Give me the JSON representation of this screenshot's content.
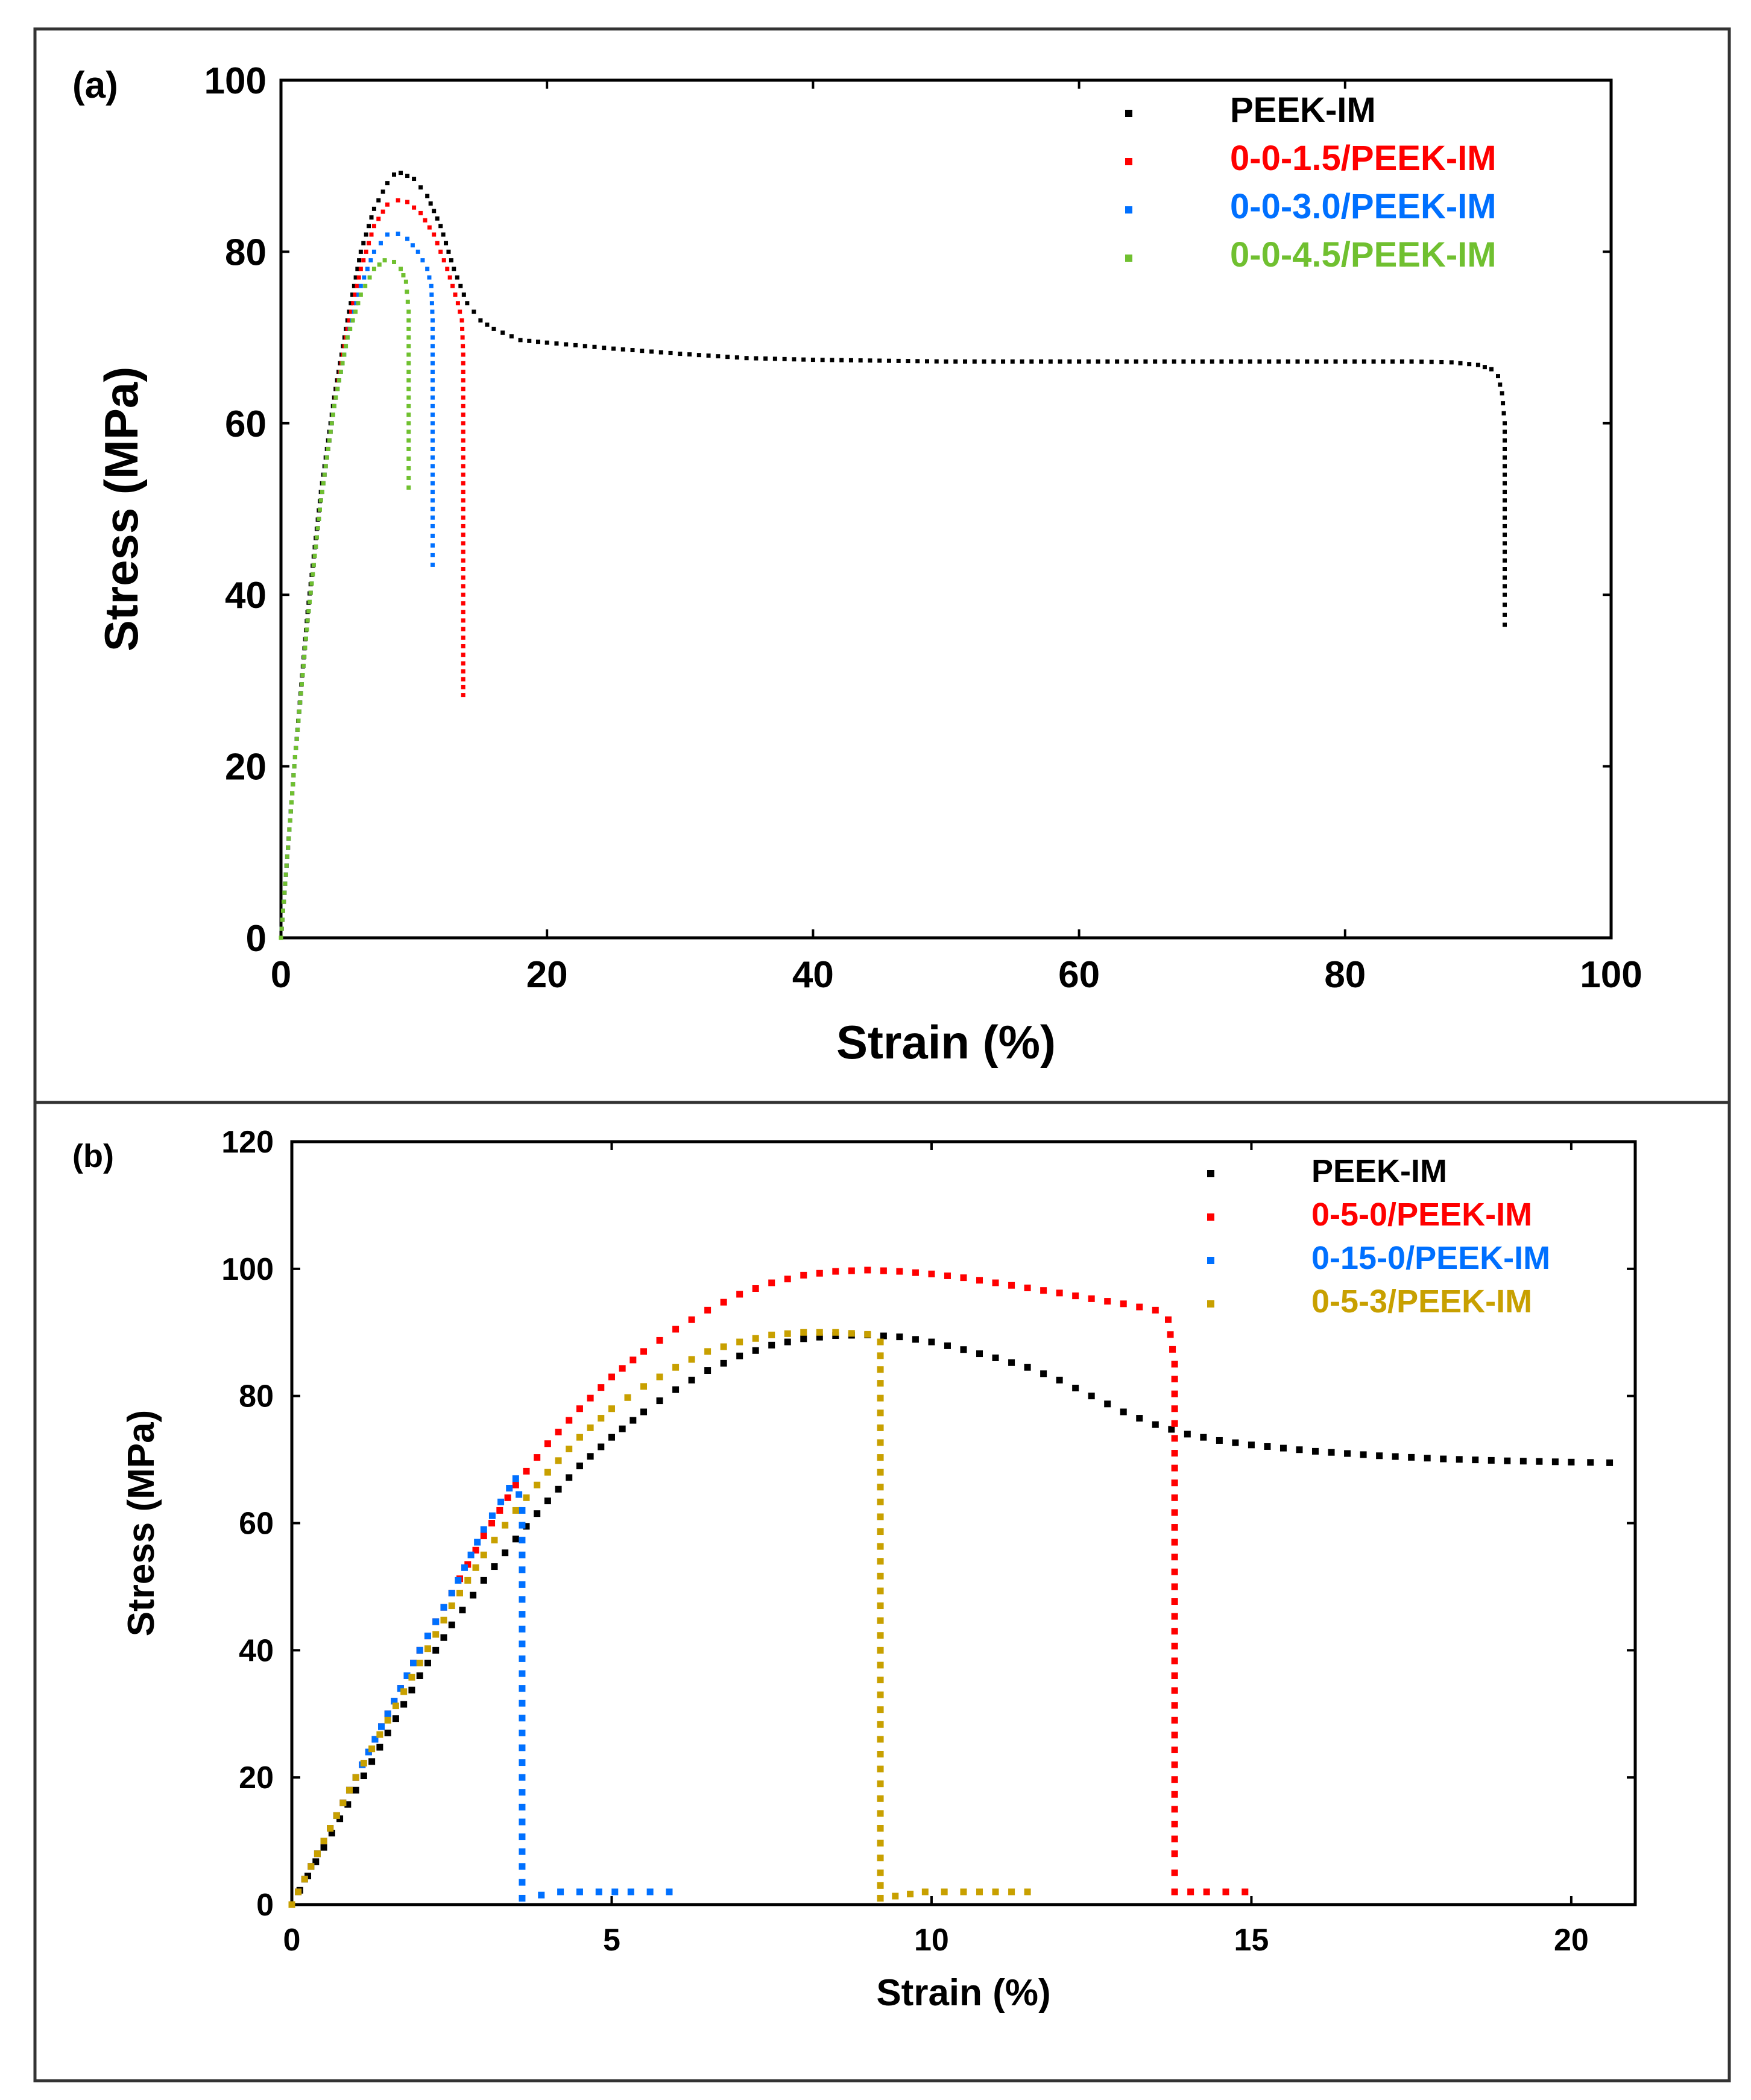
{
  "chart_data": [
    {
      "panel_label": "(a)",
      "type": "scatter",
      "title": "",
      "xlabel": "Strain (%)",
      "ylabel": "Stress (MPa)",
      "xlim": [
        0,
        100
      ],
      "ylim": [
        0,
        100
      ],
      "xticks": [
        0,
        20,
        40,
        60,
        80,
        100
      ],
      "yticks": [
        0,
        20,
        40,
        60,
        80,
        100
      ],
      "grid": false,
      "legend_position": "top-right",
      "series": [
        {
          "name": "PEEK-IM",
          "color": "#000000",
          "points": [
            [
              0,
              0
            ],
            [
              1,
              20
            ],
            [
              2,
              38
            ],
            [
              3,
              52
            ],
            [
              4,
              63
            ],
            [
              5,
              72
            ],
            [
              6,
              80
            ],
            [
              7,
              85
            ],
            [
              8,
              88
            ],
            [
              8.5,
              89
            ],
            [
              9,
              89.2
            ],
            [
              10,
              88.5
            ],
            [
              11,
              86.5
            ],
            [
              12,
              83
            ],
            [
              13,
              78
            ],
            [
              14,
              74
            ],
            [
              15,
              72
            ],
            [
              16,
              71
            ],
            [
              18,
              69.7
            ],
            [
              20,
              69.4
            ],
            [
              25,
              68.7
            ],
            [
              30,
              68.1
            ],
            [
              35,
              67.6
            ],
            [
              40,
              67.4
            ],
            [
              45,
              67.3
            ],
            [
              50,
              67.2
            ],
            [
              55,
              67.2
            ],
            [
              60,
              67.2
            ],
            [
              65,
              67.2
            ],
            [
              70,
              67.2
            ],
            [
              75,
              67.2
            ],
            [
              80,
              67.2
            ],
            [
              85,
              67.2
            ],
            [
              88,
              67.1
            ],
            [
              90,
              66.8
            ],
            [
              91,
              66.3
            ],
            [
              91.5,
              65.5
            ],
            [
              91.8,
              63.5
            ],
            [
              92,
              60
            ],
            [
              92,
              55
            ],
            [
              92,
              50
            ],
            [
              92,
              45
            ],
            [
              92,
              40
            ],
            [
              92,
              36.5
            ]
          ]
        },
        {
          "name": "0-0-1.5/PEEK-IM",
          "color": "#ff0000",
          "points": [
            [
              0,
              0
            ],
            [
              1,
              20
            ],
            [
              2,
              37
            ],
            [
              3,
              51
            ],
            [
              4,
              62
            ],
            [
              5,
              71
            ],
            [
              6,
              78
            ],
            [
              7,
              83
            ],
            [
              8,
              85.5
            ],
            [
              8.8,
              86
            ],
            [
              9.5,
              85.8
            ],
            [
              10.5,
              84.5
            ],
            [
              11.5,
              82
            ],
            [
              12.5,
              78
            ],
            [
              13.3,
              74
            ],
            [
              13.6,
              72
            ],
            [
              13.7,
              68
            ],
            [
              13.7,
              64
            ],
            [
              13.7,
              60
            ],
            [
              13.7,
              56
            ],
            [
              13.7,
              52
            ],
            [
              13.7,
              48
            ],
            [
              13.7,
              44
            ],
            [
              13.7,
              40
            ],
            [
              13.7,
              36
            ],
            [
              13.7,
              32
            ],
            [
              13.7,
              28.3
            ]
          ]
        },
        {
          "name": "0-0-3.0/PEEK-IM",
          "color": "#0070ff",
          "points": [
            [
              0,
              0
            ],
            [
              1,
              20
            ],
            [
              2,
              37
            ],
            [
              3,
              51
            ],
            [
              4,
              62
            ],
            [
              5,
              70
            ],
            [
              6,
              76
            ],
            [
              7,
              80
            ],
            [
              8,
              82
            ],
            [
              8.8,
              82.1
            ],
            [
              9.5,
              81.5
            ],
            [
              10.3,
              80
            ],
            [
              11,
              78
            ],
            [
              11.3,
              76
            ],
            [
              11.4,
              72
            ],
            [
              11.4,
              68
            ],
            [
              11.4,
              64
            ],
            [
              11.4,
              60
            ],
            [
              11.4,
              56
            ],
            [
              11.4,
              52
            ],
            [
              11.4,
              48
            ],
            [
              11.4,
              43.5
            ]
          ]
        },
        {
          "name": "0-0-4.5/PEEK-IM",
          "color": "#70c030",
          "points": [
            [
              0,
              0
            ],
            [
              1,
              20
            ],
            [
              2,
              37
            ],
            [
              3,
              51
            ],
            [
              4,
              62
            ],
            [
              5,
              70
            ],
            [
              6,
              75
            ],
            [
              7,
              78
            ],
            [
              7.8,
              79
            ],
            [
              8.5,
              78.8
            ],
            [
              9,
              78
            ],
            [
              9.4,
              76.5
            ],
            [
              9.6,
              73
            ],
            [
              9.6,
              69
            ],
            [
              9.6,
              65
            ],
            [
              9.6,
              61
            ],
            [
              9.6,
              57
            ],
            [
              9.6,
              52.5
            ]
          ]
        }
      ]
    },
    {
      "panel_label": "(b)",
      "type": "scatter",
      "title": "",
      "xlabel": "Strain (%)",
      "ylabel": "Stress (MPa)",
      "xlim": [
        0,
        21
      ],
      "ylim": [
        0,
        120
      ],
      "xticks": [
        0,
        5,
        10,
        15,
        20
      ],
      "yticks": [
        0,
        20,
        40,
        60,
        80,
        100,
        120
      ],
      "grid": false,
      "legend_position": "top-right",
      "series": [
        {
          "name": "PEEK-IM",
          "color": "#000000",
          "points": [
            [
              0,
              0
            ],
            [
              0.5,
              9
            ],
            [
              1,
              18
            ],
            [
              1.5,
              27
            ],
            [
              2,
              36
            ],
            [
              2.5,
              44
            ],
            [
              3,
              51
            ],
            [
              3.5,
              57.5
            ],
            [
              4,
              63.5
            ],
            [
              4.5,
              69
            ],
            [
              5,
              73.5
            ],
            [
              5.5,
              77.5
            ],
            [
              6,
              81
            ],
            [
              6.5,
              84
            ],
            [
              7,
              86.3
            ],
            [
              7.5,
              88
            ],
            [
              8,
              89
            ],
            [
              8.5,
              89.5
            ],
            [
              9,
              89.6
            ],
            [
              9.5,
              89.3
            ],
            [
              10,
              88.5
            ],
            [
              10.5,
              87.3
            ],
            [
              11,
              86
            ],
            [
              11.5,
              84.5
            ],
            [
              12,
              82.5
            ],
            [
              12.5,
              80
            ],
            [
              13,
              77.5
            ],
            [
              13.5,
              75.5
            ],
            [
              14,
              74
            ],
            [
              14.5,
              73
            ],
            [
              15,
              72.3
            ],
            [
              16,
              71.3
            ],
            [
              17,
              70.6
            ],
            [
              18,
              70.1
            ],
            [
              19,
              69.8
            ],
            [
              20,
              69.6
            ],
            [
              20.6,
              69.5
            ]
          ]
        },
        {
          "name": "0-5-0/PEEK-IM",
          "color": "#ff0000",
          "points": [
            [
              0,
              0
            ],
            [
              0.5,
              10
            ],
            [
              1,
              20
            ],
            [
              1.5,
              30
            ],
            [
              2,
              40
            ],
            [
              2.5,
              49
            ],
            [
              3,
              58
            ],
            [
              3.5,
              66
            ],
            [
              4,
              72.5
            ],
            [
              4.5,
              78
            ],
            [
              5,
              83
            ],
            [
              5.5,
              87
            ],
            [
              6,
              90.5
            ],
            [
              6.5,
              93.5
            ],
            [
              7,
              96
            ],
            [
              7.5,
              97.8
            ],
            [
              8,
              99
            ],
            [
              8.5,
              99.6
            ],
            [
              9,
              99.8
            ],
            [
              9.5,
              99.6
            ],
            [
              10,
              99.2
            ],
            [
              10.5,
              98.6
            ],
            [
              11,
              97.8
            ],
            [
              11.5,
              97
            ],
            [
              12,
              96.2
            ],
            [
              12.5,
              95.3
            ],
            [
              13,
              94.5
            ],
            [
              13.5,
              93.5
            ],
            [
              13.7,
              92
            ],
            [
              13.8,
              85
            ],
            [
              13.8,
              78
            ],
            [
              13.8,
              71
            ],
            [
              13.8,
              64
            ],
            [
              13.8,
              57
            ],
            [
              13.8,
              50
            ],
            [
              13.8,
              43
            ],
            [
              13.8,
              36
            ],
            [
              13.8,
              29
            ],
            [
              13.8,
              22
            ],
            [
              13.8,
              15
            ],
            [
              13.8,
              8
            ],
            [
              13.8,
              2
            ],
            [
              14.3,
              2
            ],
            [
              14.9,
              2
            ]
          ]
        },
        {
          "name": "0-15-0/PEEK-IM",
          "color": "#0070ff",
          "points": [
            [
              0,
              0
            ],
            [
              0.5,
              10
            ],
            [
              1,
              20
            ],
            [
              1.5,
              30
            ],
            [
              2,
              40
            ],
            [
              2.5,
              49
            ],
            [
              3,
              59
            ],
            [
              3.4,
              65.5
            ],
            [
              3.5,
              67
            ],
            [
              3.6,
              62
            ],
            [
              3.6,
              55
            ],
            [
              3.6,
              48
            ],
            [
              3.6,
              41
            ],
            [
              3.6,
              34
            ],
            [
              3.6,
              27
            ],
            [
              3.6,
              20
            ],
            [
              3.6,
              13
            ],
            [
              3.6,
              6
            ],
            [
              3.6,
              1
            ],
            [
              4.2,
              2
            ],
            [
              4.8,
              2
            ],
            [
              5.3,
              2
            ],
            [
              5.9,
              2
            ]
          ]
        },
        {
          "name": "0-5-3/PEEK-IM",
          "color": "#c8a000",
          "points": [
            [
              0,
              0
            ],
            [
              0.5,
              10
            ],
            [
              1,
              20
            ],
            [
              1.5,
              29
            ],
            [
              2,
              38
            ],
            [
              2.5,
              47
            ],
            [
              3,
              55
            ],
            [
              3.5,
              62
            ],
            [
              4,
              68
            ],
            [
              4.5,
              73.5
            ],
            [
              5,
              78
            ],
            [
              5.5,
              81.5
            ],
            [
              6,
              84.5
            ],
            [
              6.5,
              87
            ],
            [
              7,
              88.5
            ],
            [
              7.5,
              89.6
            ],
            [
              8,
              90
            ],
            [
              8.5,
              90
            ],
            [
              9,
              89.7
            ],
            [
              9.2,
              88.5
            ],
            [
              9.2,
              82
            ],
            [
              9.2,
              75
            ],
            [
              9.2,
              68
            ],
            [
              9.2,
              61
            ],
            [
              9.2,
              54
            ],
            [
              9.2,
              47
            ],
            [
              9.2,
              40
            ],
            [
              9.2,
              33
            ],
            [
              9.2,
              26
            ],
            [
              9.2,
              19
            ],
            [
              9.2,
              12
            ],
            [
              9.2,
              5
            ],
            [
              9.2,
              1
            ],
            [
              9.9,
              2
            ],
            [
              10.5,
              2
            ],
            [
              11,
              2
            ],
            [
              11.5,
              2
            ]
          ]
        }
      ]
    }
  ]
}
